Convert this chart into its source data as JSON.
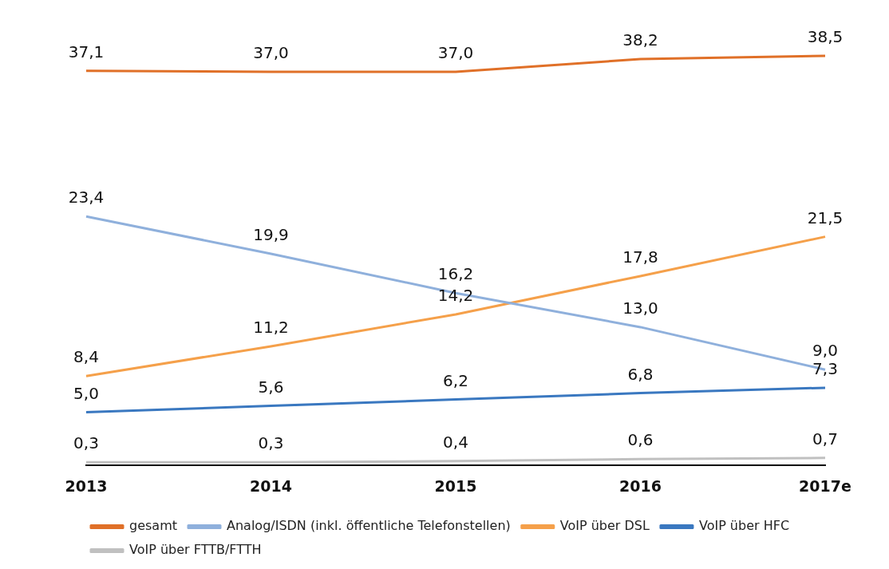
{
  "chart_data": {
    "type": "line",
    "categories": [
      "2013",
      "2014",
      "2015",
      "2016",
      "2017e"
    ],
    "tick_labels": "x",
    "grid": false,
    "legend": "bottom",
    "marker": "none",
    "line_style": "solid",
    "series": [
      {
        "name": "gesamt",
        "color": "#e07028",
        "values": [
          37.1,
          37.0,
          37.0,
          38.2,
          38.5
        ],
        "value_labels": [
          "37,1",
          "37,0",
          "37,0",
          "38,2",
          "38,5"
        ]
      },
      {
        "name": "Analog/ISDN (inkl. öffentliche Telefonstellen)",
        "color": "#8fb0dc",
        "values": [
          23.4,
          19.9,
          16.2,
          13.0,
          9.0
        ],
        "value_labels": [
          "23,4",
          "19,9",
          "16,2",
          "13,0",
          "9,0"
        ]
      },
      {
        "name": "VoIP über DSL",
        "color": "#f5a04a",
        "values": [
          8.4,
          11.2,
          14.2,
          17.8,
          21.5
        ],
        "value_labels": [
          "8,4",
          "11,2",
          "14,2",
          "17,8",
          "21,5"
        ]
      },
      {
        "name": "VoIP über HFC",
        "color": "#3a78c0",
        "values": [
          5.0,
          5.6,
          6.2,
          6.8,
          7.3
        ],
        "value_labels": [
          "5,0",
          "5,6",
          "6,2",
          "6,8",
          "7,3"
        ]
      },
      {
        "name": "VoIP über FTTB/FTTH",
        "color": "#c0c0c0",
        "values": [
          0.3,
          0.3,
          0.4,
          0.6,
          0.7
        ],
        "value_labels": [
          "0,3",
          "0,3",
          "0,4",
          "0,6",
          "0,7"
        ]
      }
    ]
  }
}
